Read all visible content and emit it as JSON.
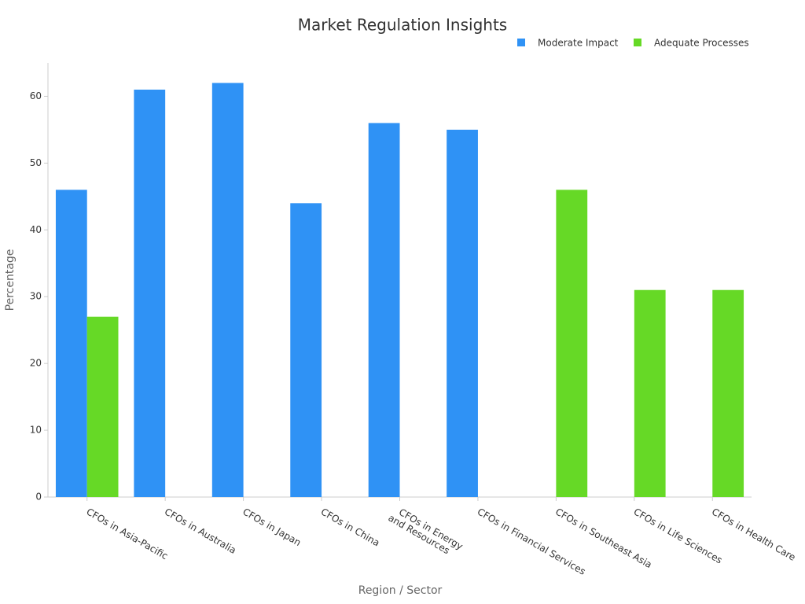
{
  "chart_data": {
    "type": "bar",
    "title": "Market Regulation Insights",
    "x_label": "Region / Sector",
    "y_label": "Percentage",
    "categories": [
      "CFOs in Asia-Pacific",
      "CFOs in Australia",
      "CFOs in Japan",
      "CFOs in China",
      "CFOs in Energy\nand Resources",
      "CFOs in Financial Services",
      "CFOs in Southeast Asia",
      "CFOs in Life Sciences",
      "CFOs in Health Care"
    ],
    "series": [
      {
        "name": "Moderate Impact",
        "color": "#2f92f5",
        "values": [
          46,
          61,
          62,
          44,
          56,
          55,
          null,
          null,
          null
        ]
      },
      {
        "name": "Adequate Processes",
        "color": "#66d926",
        "values": [
          27,
          null,
          null,
          null,
          null,
          null,
          46,
          31,
          31
        ]
      }
    ],
    "ylim": [
      0,
      65
    ],
    "yticks": [
      0,
      10,
      20,
      30,
      40,
      50,
      60
    ],
    "grid": false,
    "legend": "top-right"
  }
}
